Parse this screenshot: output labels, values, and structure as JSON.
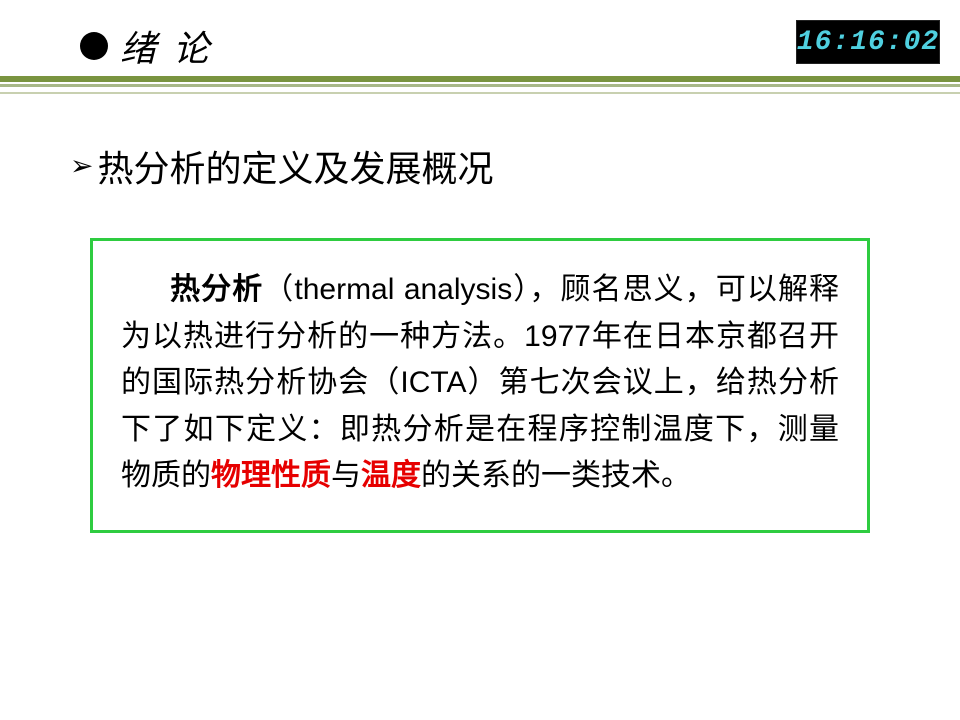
{
  "header": {
    "title": "绪 论",
    "clock": "16:16:02",
    "colors": {
      "clock_bg": "#000000",
      "clock_text": "#4fd0e0",
      "bullet": "#000000"
    }
  },
  "divider": {
    "line1_color": "#7a9440",
    "line2_color": "#a8b888",
    "line3_color": "#c8d0b0"
  },
  "section": {
    "title": "热分析的定义及发展概况",
    "chevron": "➢"
  },
  "box": {
    "border_color": "#2ecc40",
    "body": {
      "lead_bold": "热分析",
      "paren_open": "（",
      "latin1": "thermal analysis",
      "paren_close": "）",
      "t1": "，顾名思义，可以解释为以热进行分析的一种方法。",
      "year": "1977",
      "t2": "年在日本京都召开的国际热分析协会（",
      "latin2": "ICTA",
      "t3": "）第七次会议上，给热分析下了如下定义：即热分析是在程序控制温度下，测量物质的",
      "key1": "物理性质",
      "t4": "与",
      "key2": "温度",
      "t5": "的关系的一类技术。"
    }
  }
}
